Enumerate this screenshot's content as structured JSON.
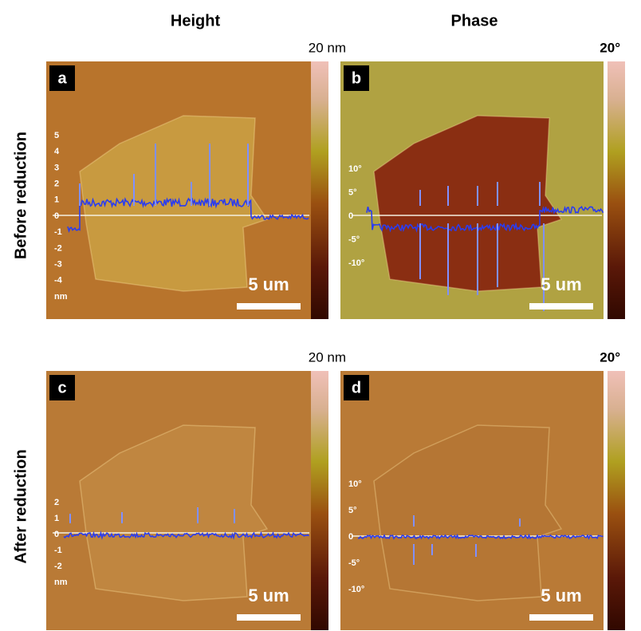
{
  "header": {
    "columns": [
      "Height",
      "Phase"
    ],
    "rows": [
      "Before reduction",
      "After reduction"
    ]
  },
  "panels": [
    {
      "letter": "a",
      "colorbar_label": "20 nm",
      "scale_bar": "5 um",
      "profile_ticks": [
        "5",
        "4",
        "3",
        "2",
        "1",
        "0",
        "-1",
        "-2",
        "-3",
        "-4",
        "nm"
      ]
    },
    {
      "letter": "b",
      "colorbar_label": "20°",
      "scale_bar": "5 um",
      "profile_ticks": [
        "10°",
        "5°",
        "0",
        "-5°",
        "-10°"
      ]
    },
    {
      "letter": "c",
      "colorbar_label": "20 nm",
      "scale_bar": "5 um",
      "profile_ticks": [
        "2",
        "1",
        "0",
        "-1",
        "-2",
        "nm"
      ]
    },
    {
      "letter": "d",
      "colorbar_label": "20°",
      "scale_bar": "5 um",
      "profile_ticks": [
        "10°",
        "5°",
        "0",
        "-5°",
        "-10°"
      ]
    }
  ]
}
